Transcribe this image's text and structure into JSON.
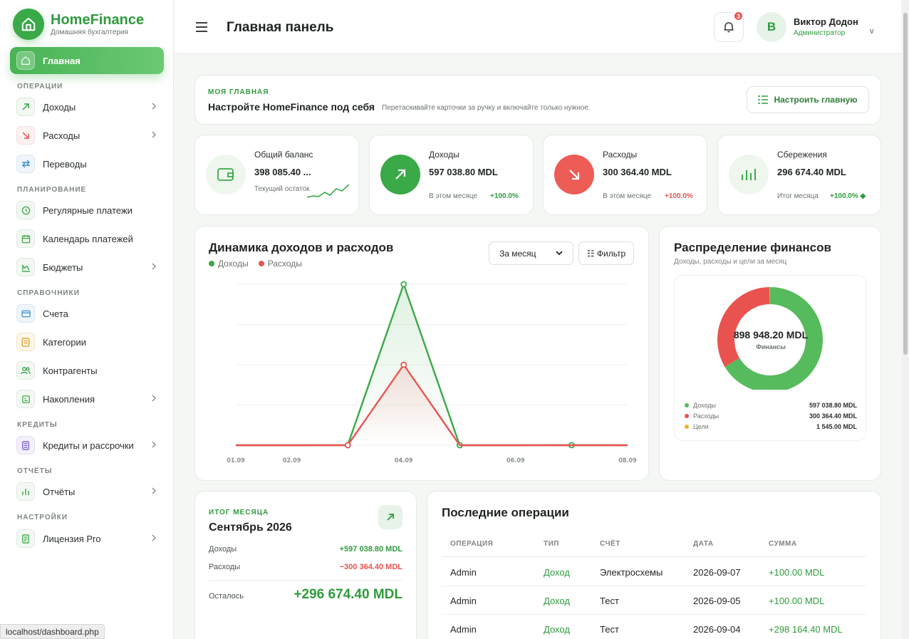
{
  "brand": {
    "name": "HomeFinance",
    "subtitle": "Домашняя бухгалтерия"
  },
  "sidebar": {
    "active": {
      "label": "Главная"
    },
    "sections": {
      "operations": "ОПЕРАЦИИ",
      "planning": "ПЛАНИРОВАНИЕ",
      "references": "СПРАВОЧНИКИ",
      "credits": "КРЕДИТЫ",
      "reports": "ОТЧЁТЫ",
      "settings": "НАСТРОЙКИ"
    },
    "items": {
      "income": "Доходы",
      "expenses": "Расходы",
      "transfers": "Переводы",
      "recurring": "Регулярные платежи",
      "calendar": "Календарь платежей",
      "budgets": "Бюджеты",
      "accounts": "Счета",
      "categories": "Категории",
      "counterparties": "Контрагенты",
      "savings": "Накопления",
      "loans": "Кредиты и рассрочки",
      "reports": "Отчёты",
      "license": "Лицензия Pro"
    }
  },
  "header": {
    "title": "Главная панель",
    "notifications_count": "3",
    "user": {
      "initial": "В",
      "name": "Виктор Додон",
      "role": "Администратор",
      "chevron": "v"
    }
  },
  "customize": {
    "tag": "МОЯ ГЛАВНАЯ",
    "title": "Настройте HomeFinance под себя",
    "subtitle": "Перетаскивайте карточки за ручку и включайте только нужное.",
    "button": "Настроить главную"
  },
  "stats": {
    "balance": {
      "label": "Общий баланс",
      "value": "398 085.40 ...",
      "note": "Текущий остаток"
    },
    "income": {
      "label": "Доходы",
      "value": "597 038.80 MDL",
      "note": "В этом месяце",
      "delta": "+100.0%"
    },
    "expenses": {
      "label": "Расходы",
      "value": "300 364.40 MDL",
      "note": "В этом месяце",
      "delta": "+100.0%"
    },
    "savings": {
      "label": "Сбережения",
      "value": "296 674.40 MDL",
      "note": "Итог месяца",
      "delta": "+100.0% ◆"
    }
  },
  "chart": {
    "title": "Динамика доходов и расходов",
    "period": "За месяц",
    "filter": "☷ Фильтр"
  },
  "chart_data": {
    "type": "line",
    "x": [
      "01.09",
      "02.09",
      "03.09",
      "04.09",
      "05.09",
      "06.09",
      "07.09",
      "08.09"
    ],
    "tick_labels": [
      "01.09",
      "02.09",
      "04.09",
      "06.09",
      "08.09"
    ],
    "series": [
      {
        "name": "Доходы",
        "color": "#3aa947",
        "values": [
          0,
          0,
          100,
          200000,
          0,
          0,
          100,
          0
        ]
      },
      {
        "name": "Расходы",
        "color": "#e9534f",
        "values": [
          0,
          0,
          0,
          100000,
          0,
          0,
          0,
          0
        ]
      }
    ],
    "ylim": [
      0,
      200000
    ],
    "grid": true,
    "legend": "top-left"
  },
  "distribution": {
    "title": "Распределение финансов",
    "subtitle": "Доходы, расходы и цели за месяц",
    "total": "898 948.20 MDL",
    "total_label": "Финансы",
    "legend": [
      {
        "name": "Доходы",
        "value": "597 038.80 MDL",
        "color": "#56bb5c",
        "amount": 597038.8
      },
      {
        "name": "Расходы",
        "value": "300 364.40 MDL",
        "color": "#e9534f",
        "amount": 300364.4
      },
      {
        "name": "Цели",
        "value": "1 545.00 MDL",
        "color": "#f2b12d",
        "amount": 1545
      }
    ]
  },
  "month_summary": {
    "tag": "ИТОГ МЕСЯЦА",
    "title": "Сентябрь 2026",
    "income_label": "Доходы",
    "income_value": "+597 038.80 MDL",
    "expense_label": "Расходы",
    "expense_value": "−300 364.40 MDL",
    "left_label": "Осталось",
    "left_value": "+296 674.40 MDL"
  },
  "operations": {
    "title": "Последние операции",
    "headers": [
      "ОПЕРАЦИЯ",
      "ТИП",
      "СЧЁТ",
      "ДАТА",
      "СУММА"
    ],
    "rows": [
      [
        "Admin",
        "Доход",
        "Электросхемы",
        "2026-09-07",
        "+100.00 MDL"
      ],
      [
        "Admin",
        "Доход",
        "Тест",
        "2026-09-05",
        "+100.00 MDL"
      ],
      [
        "Admin",
        "Доход",
        "Тест",
        "2026-09-04",
        "+298 164.40 MDL"
      ]
    ]
  },
  "status_bar": {
    "url": "localhost/dashboard.php"
  },
  "icons": {
    "logo": "home-icon",
    "notifications": "bell-icon",
    "menu": "hamburger-icon"
  }
}
